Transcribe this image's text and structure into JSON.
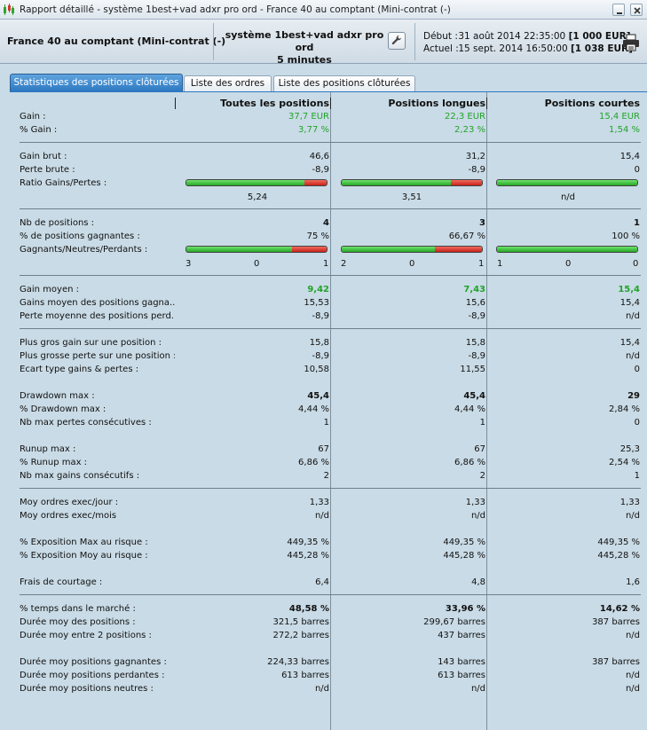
{
  "window": {
    "title": "Rapport détaillé - système 1best+vad adxr pro ord - France 40 au comptant (Mini-contrat  (-)"
  },
  "infobar": {
    "instrument": "France 40 au comptant (Mini-contrat  (-)",
    "system_line1": "système 1best+vad adxr pro ord",
    "system_line2": "5 minutes",
    "start_label": "Début :",
    "start_date": "31 août 2014 22:35:00",
    "start_capital": "[1 000 EUR]",
    "end_label": "Actuel :",
    "end_date": "15 sept. 2014 16:50:00",
    "end_capital": "[1 038 EUR]"
  },
  "tabs": [
    "Statistiques des positions clôturées",
    "Liste des ordres",
    "Liste des positions clôturées"
  ],
  "columns": [
    "Toutes les positions",
    "Positions longues",
    "Positions courtes"
  ],
  "rows": {
    "gain": {
      "label": "Gain :",
      "v": [
        "37,7 EUR",
        "22,3 EUR",
        "15,4 EUR"
      ]
    },
    "gain_pct": {
      "label": "% Gain :",
      "v": [
        "3,77 %",
        "2,23 %",
        "1,54 %"
      ]
    },
    "gain_brut": {
      "label": "Gain brut :",
      "v": [
        "46,6",
        "31,2",
        "15,4"
      ]
    },
    "perte_brute": {
      "label": "Perte brute :",
      "v": [
        "-8,9",
        "-8,9",
        "0"
      ]
    },
    "ratio": {
      "label": "Ratio Gains/Pertes :",
      "v": [
        "5,24",
        "3,51",
        "n/d"
      ],
      "red_fraction": [
        0.16,
        0.22,
        0.0
      ]
    },
    "nb_positions": {
      "label": "Nb de positions :",
      "v": [
        "4",
        "3",
        "1"
      ]
    },
    "pct_gagnantes": {
      "label": "% de positions gagnantes :",
      "v": [
        "75 %",
        "66,67 %",
        "100 %"
      ]
    },
    "gnp": {
      "label": "Gagnants/Neutres/Perdants :",
      "red_fraction": [
        0.25,
        0.3333,
        0.0
      ],
      "g": [
        "3",
        "2",
        "1"
      ],
      "n": [
        "0",
        "0",
        "0"
      ],
      "p": [
        "1",
        "1",
        "0"
      ]
    },
    "gain_moyen": {
      "label": "Gain moyen :",
      "v": [
        "9,42",
        "7,43",
        "15,4"
      ]
    },
    "gains_moyen_gagn": {
      "label": "Gains moyen des positions gagna...",
      "v": [
        "15,53",
        "15,6",
        "15,4"
      ]
    },
    "perte_moyenne": {
      "label": "Perte moyenne des positions perd...",
      "v": [
        "-8,9",
        "-8,9",
        "n/d"
      ]
    },
    "plus_gros_gain": {
      "label": "Plus gros gain sur une position :",
      "v": [
        "15,8",
        "15,8",
        "15,4"
      ]
    },
    "plus_grosse_perte": {
      "label": "Plus grosse perte sur une position :",
      "v": [
        "-8,9",
        "-8,9",
        "n/d"
      ]
    },
    "ecart_type": {
      "label": "Ecart type gains & pertes :",
      "v": [
        "10,58",
        "11,55",
        "0"
      ]
    },
    "drawdown_max": {
      "label": "Drawdown max :",
      "v": [
        "45,4",
        "45,4",
        "29"
      ]
    },
    "drawdown_pct": {
      "label": "% Drawdown max :",
      "v": [
        "4,44 %",
        "4,44 %",
        "2,84 %"
      ]
    },
    "nb_pertes_consec": {
      "label": "Nb max pertes consécutives :",
      "v": [
        "1",
        "1",
        "0"
      ]
    },
    "runup_max": {
      "label": "Runup max :",
      "v": [
        "67",
        "67",
        "25,3"
      ]
    },
    "runup_pct": {
      "label": "% Runup max :",
      "v": [
        "6,86 %",
        "6,86 %",
        "2,54 %"
      ]
    },
    "nb_gains_consec": {
      "label": "Nb max gains consécutifs :",
      "v": [
        "2",
        "2",
        "1"
      ]
    },
    "moy_ordres_jour": {
      "label": "Moy ordres exec/jour :",
      "v": [
        "1,33",
        "1,33",
        "1,33"
      ]
    },
    "moy_ordres_mois": {
      "label": "Moy ordres exec/mois",
      "v": [
        "n/d",
        "n/d",
        "n/d"
      ]
    },
    "expo_max": {
      "label": "% Exposition Max au risque :",
      "v": [
        "449,35 %",
        "449,35 %",
        "449,35 %"
      ]
    },
    "expo_moy": {
      "label": "% Exposition Moy au risque :",
      "v": [
        "445,28 %",
        "445,28 %",
        "445,28 %"
      ]
    },
    "frais": {
      "label": "Frais de courtage :",
      "v": [
        "6,4",
        "4,8",
        "1,6"
      ]
    },
    "temps_marche": {
      "label": "% temps dans le marché :",
      "v": [
        "48,58 %",
        "33,96 %",
        "14,62 %"
      ]
    },
    "duree_positions": {
      "label": "Durée moy des positions :",
      "v": [
        "321,5 barres",
        "299,67 barres",
        "387 barres"
      ]
    },
    "duree_entre": {
      "label": "Durée moy entre 2 positions :",
      "v": [
        "272,2 barres",
        "437 barres",
        "n/d"
      ]
    },
    "duree_gagnantes": {
      "label": "Durée moy positions gagnantes :",
      "v": [
        "224,33 barres",
        "143 barres",
        "387 barres"
      ]
    },
    "duree_perdantes": {
      "label": "Durée moy positions perdantes :",
      "v": [
        "613 barres",
        "613 barres",
        "n/d"
      ]
    },
    "duree_neutres": {
      "label": "Durée moy positions neutres :",
      "v": [
        "n/d",
        "n/d",
        "n/d"
      ]
    }
  },
  "icons": {
    "app": "chart-candles-icon",
    "minimize": "minimize-icon",
    "close": "close-icon",
    "settings": "wrench-icon",
    "print": "printer-icon"
  },
  "colors": {
    "green_text": "#22a32a",
    "bar_green": "#2fbf2f",
    "bar_red": "#d8322b",
    "tab_active": "#2d78c2"
  }
}
